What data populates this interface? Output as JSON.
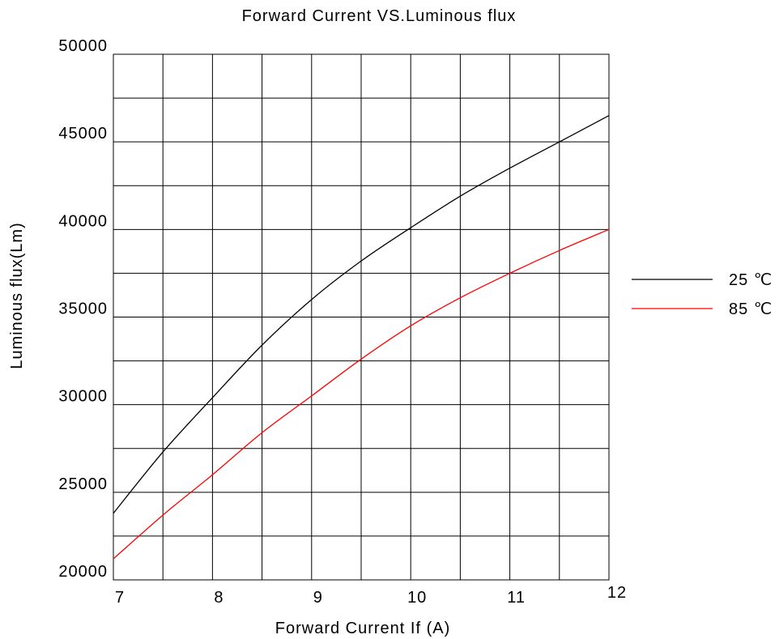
{
  "chart_data": {
    "type": "line",
    "title": "Forward Current VS.Luminous flux",
    "xlabel": "Forward Current  If (A)",
    "ylabel": "Luminous flux(Lm)",
    "xlim": [
      7,
      12
    ],
    "ylim": [
      20000,
      50000
    ],
    "x_ticks": [
      "7",
      "8",
      "9",
      "10",
      "11",
      "12"
    ],
    "y_ticks": [
      "20000",
      "25000",
      "30000",
      "35000",
      "40000",
      "45000",
      "50000"
    ],
    "grid": true,
    "legend_position": "right",
    "series": [
      {
        "name": "25 ℃",
        "color": "#000000",
        "x": [
          7,
          7.5,
          8,
          8.5,
          9,
          9.5,
          10,
          10.5,
          11,
          11.5,
          12
        ],
        "y": [
          23800,
          27300,
          30400,
          33400,
          36000,
          38200,
          40100,
          41900,
          43500,
          45000,
          46500
        ]
      },
      {
        "name": "85 ℃",
        "color": "#ff0000",
        "x": [
          7,
          7.5,
          8,
          8.5,
          9,
          9.5,
          10,
          10.5,
          11,
          11.5,
          12
        ],
        "y": [
          21200,
          23700,
          26000,
          28400,
          30500,
          32600,
          34500,
          36100,
          37500,
          38800,
          40000
        ]
      }
    ]
  }
}
